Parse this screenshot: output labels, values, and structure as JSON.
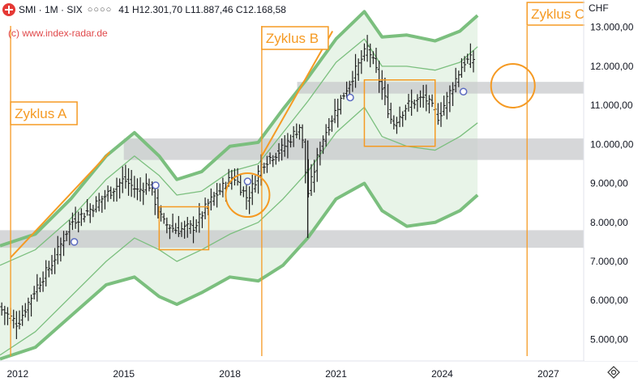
{
  "header": {
    "symbol": "SMI · 1M · SIX",
    "ohlc_prefix": "41",
    "high": "H12.301,70",
    "low": "L11.887,46",
    "close": "C12.168,58",
    "menu_dots": "○○○○"
  },
  "watermark": "(c) www.index-radar.de",
  "currency": "CHF",
  "colors": {
    "orange": "#f59a23",
    "band_green": "#7bbf7e",
    "band_fill": "#e6f3e6",
    "zone_gray": "#c8c9cc",
    "candle": "#1f1f1f",
    "marker_blue": "#5c6bc0"
  },
  "chart_data": {
    "type": "ohlc",
    "y_axis": {
      "ticks": [
        "5.000,00",
        "6.000,00",
        "7.000,00",
        "8.000,00",
        "9.000,00",
        "10.000,00",
        "11.000,00",
        "12.000,00",
        "13.000,00"
      ],
      "tick_values": [
        5000,
        6000,
        7000,
        8000,
        9000,
        10000,
        11000,
        12000,
        13000
      ],
      "range": [
        4450,
        13200
      ]
    },
    "x_axis": {
      "ticks": [
        "2012",
        "2015",
        "2018",
        "2021",
        "2024",
        "2027"
      ],
      "tick_years": [
        2012,
        2015,
        2018,
        2021,
        2024,
        2027
      ],
      "range": [
        2011.5,
        2028.0
      ]
    },
    "annotations": [
      {
        "label": "Zyklus A",
        "x": 2011.8
      },
      {
        "label": "Zyklus B",
        "x": 2018.9
      },
      {
        "label": "Zyklus C",
        "x": 2026.4
      }
    ],
    "zones": [
      {
        "from": 11300,
        "to": 11600,
        "x_start": 2019.9
      },
      {
        "from": 9600,
        "to": 10150,
        "x_start": 2015.0
      },
      {
        "from": 7350,
        "to": 7800,
        "x_start": 2011.5
      }
    ],
    "boxes": [
      {
        "x_start": 2016.0,
        "x_end": 2017.4,
        "y_low": 7300,
        "y_high": 8400
      },
      {
        "x_start": 2021.8,
        "x_end": 2023.8,
        "y_low": 9950,
        "y_high": 11650
      }
    ],
    "circles": [
      {
        "x": 2018.5,
        "y": 8700
      },
      {
        "x": 2026.0,
        "y": 11500
      }
    ],
    "trendlines": [
      {
        "x1": 2011.8,
        "y1": 7100,
        "x2": 2014.6,
        "y2": 9800
      },
      {
        "x1": 2018.9,
        "y1": 9700,
        "x2": 2020.9,
        "y2": 12900
      }
    ],
    "markers": [
      {
        "x": 2013.6,
        "y": 7500
      },
      {
        "x": 2015.9,
        "y": 8950
      },
      {
        "x": 2018.5,
        "y": 9050
      },
      {
        "x": 2021.4,
        "y": 11200
      },
      {
        "x": 2024.6,
        "y": 11350
      }
    ],
    "channel": {
      "years": [
        2011.5,
        2012.5,
        2013.5,
        2014.5,
        2015.3,
        2016.0,
        2016.5,
        2017.2,
        2018.0,
        2018.8,
        2019.5,
        2020.2,
        2021.0,
        2021.8,
        2022.3,
        2023.0,
        2023.8,
        2024.5,
        2025.0
      ],
      "outer_upper": [
        7400,
        7700,
        8600,
        9700,
        10300,
        9700,
        9100,
        9300,
        9950,
        10050,
        10900,
        11700,
        12700,
        13400,
        12750,
        12800,
        12650,
        12900,
        13300
      ],
      "mid_upper": [
        6900,
        7300,
        8100,
        9100,
        9700,
        9200,
        8700,
        8800,
        9300,
        9500,
        10300,
        11100,
        12100,
        12700,
        12000,
        12000,
        11900,
        12100,
        12500
      ],
      "mid_lower": [
        4600,
        5200,
        6100,
        7000,
        7600,
        7300,
        7000,
        7300,
        7700,
        8000,
        8600,
        9300,
        10300,
        10950,
        10200,
        9950,
        9850,
        10200,
        10550
      ],
      "outer_lower": [
        4500,
        4800,
        5600,
        6400,
        6600,
        6100,
        5900,
        6200,
        6600,
        6500,
        6900,
        7600,
        8600,
        9000,
        8300,
        7900,
        8000,
        8300,
        8700
      ]
    },
    "ohlc_series_note": "monthly OHLC bars approximated from the screenshot"
  }
}
